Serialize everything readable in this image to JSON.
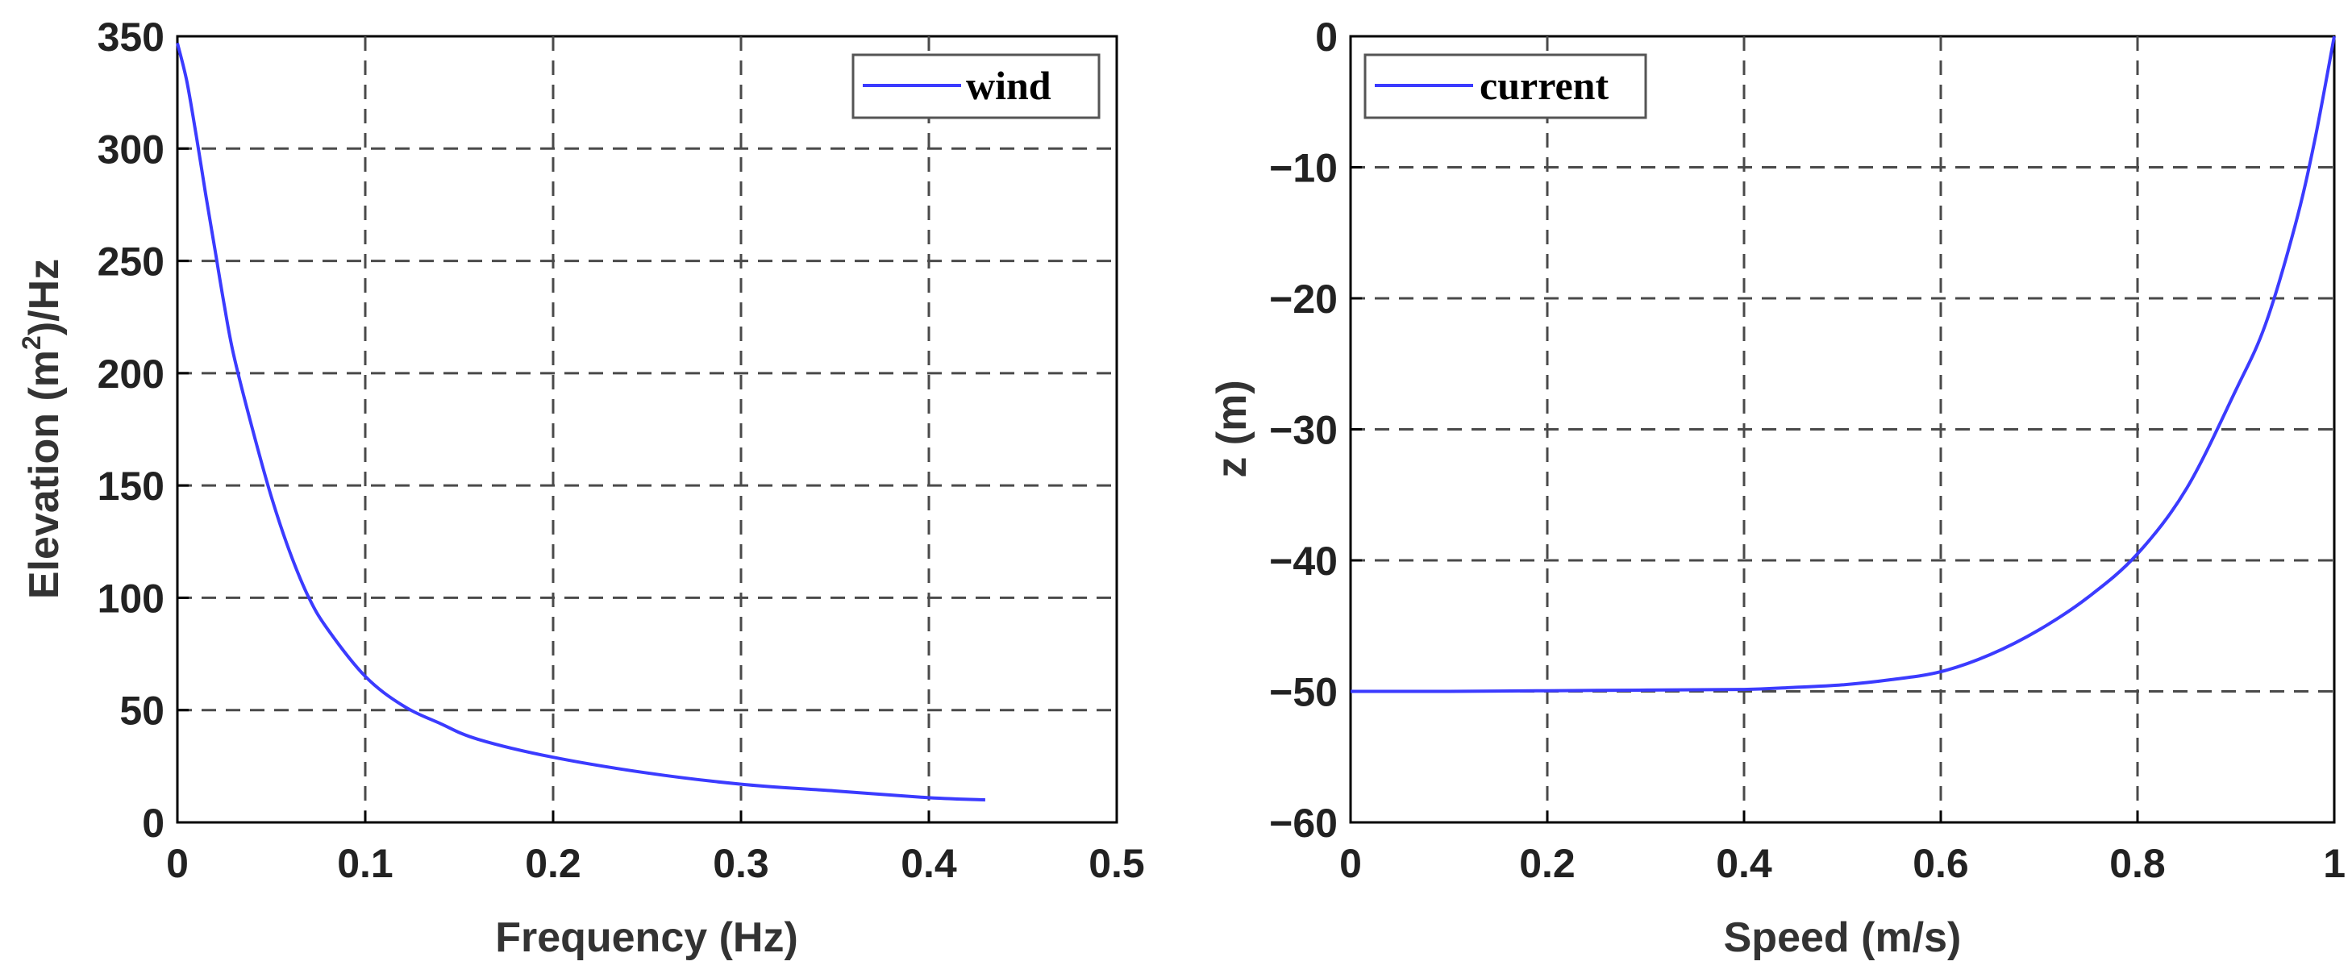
{
  "chart_data": [
    {
      "type": "line",
      "xlabel": "Frequency (Hz)",
      "ylabel": {
        "prefix": "Elevation (m",
        "sup": "2",
        "suffix": ")/Hz"
      },
      "xlim": [
        0,
        0.5
      ],
      "ylim": [
        0,
        350
      ],
      "xticks": [
        0,
        0.1,
        0.2,
        0.3,
        0.4,
        0.5
      ],
      "yticks": [
        0,
        50,
        100,
        150,
        200,
        250,
        300,
        350
      ],
      "xtick_labels": [
        "0",
        "0.1",
        "0.2",
        "0.3",
        "0.4",
        "0.5"
      ],
      "ytick_labels": [
        "0",
        "50",
        "100",
        "150",
        "200",
        "250",
        "300",
        "350"
      ],
      "grid": true,
      "legend": "top-right",
      "series": [
        {
          "name": "wind",
          "color": "#3b3bff",
          "x": [
            0.0,
            0.005,
            0.01,
            0.015,
            0.02,
            0.025,
            0.03,
            0.04,
            0.05,
            0.06,
            0.07,
            0.08,
            0.1,
            0.12,
            0.14,
            0.16,
            0.2,
            0.25,
            0.3,
            0.35,
            0.4,
            0.43
          ],
          "y": [
            347,
            330,
            306,
            280,
            255,
            230,
            208,
            175,
            145,
            120,
            100,
            86,
            65,
            52,
            44,
            37,
            29,
            22,
            17,
            14,
            11,
            10
          ]
        }
      ]
    },
    {
      "type": "line",
      "xlabel": "Speed (m/s)",
      "ylabel": "z (m)",
      "xlim": [
        0,
        1
      ],
      "ylim": [
        -60,
        0
      ],
      "xticks": [
        0,
        0.2,
        0.4,
        0.6,
        0.8,
        1
      ],
      "yticks": [
        -60,
        -50,
        -40,
        -30,
        -20,
        -10,
        0
      ],
      "xtick_labels": [
        "0",
        "0.2",
        "0.4",
        "0.6",
        "0.8",
        "1"
      ],
      "ytick_labels": [
        "−60",
        "−50",
        "−40",
        "−30",
        "−20",
        "−10",
        "0"
      ],
      "grid": true,
      "legend": "top-left",
      "series": [
        {
          "name": "current",
          "color": "#3b3bff",
          "x": [
            0.0,
            0.1,
            0.2,
            0.3,
            0.4,
            0.45,
            0.5,
            0.55,
            0.6,
            0.65,
            0.7,
            0.75,
            0.8,
            0.85,
            0.9,
            0.93,
            0.96,
            0.98,
            1.0
          ],
          "y": [
            -50,
            -50,
            -49.95,
            -49.9,
            -49.85,
            -49.7,
            -49.5,
            -49.1,
            -48.5,
            -47.2,
            -45.3,
            -42.8,
            -39.5,
            -34.5,
            -27,
            -22,
            -14.5,
            -8,
            0
          ]
        }
      ]
    }
  ]
}
